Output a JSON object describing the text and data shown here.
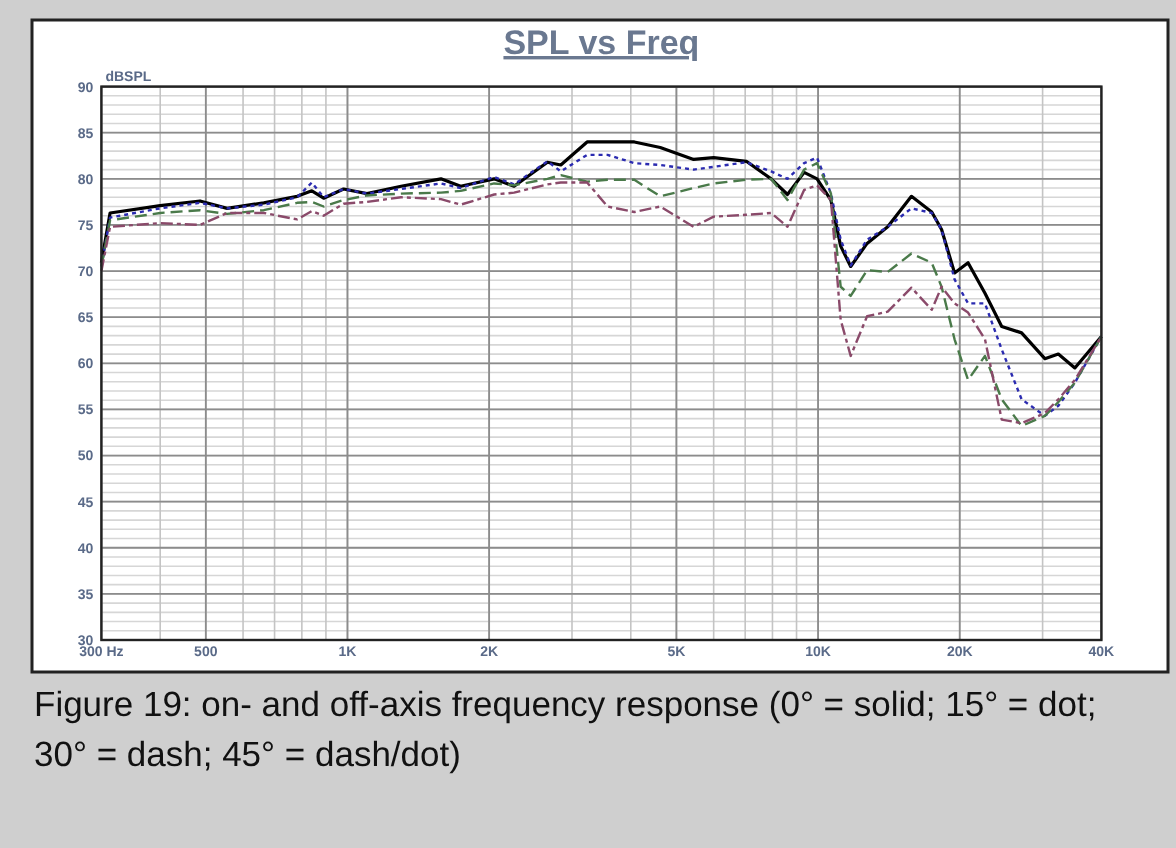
{
  "chart_data": {
    "type": "line",
    "title": "SPL vs Freq",
    "ylabel": "dBSPL",
    "log": "x",
    "x": [
      300,
      313,
      400,
      486,
      555,
      664,
      782,
      840,
      890,
      981,
      1100,
      1300,
      1580,
      1740,
      2050,
      2260,
      2660,
      2840,
      3230,
      3570,
      4070,
      4620,
      5440,
      6000,
      7040,
      7950,
      8610,
      9340,
      9950,
      10650,
      11170,
      11730,
      12710,
      14060,
      15790,
      17440,
      18300,
      19500,
      20830,
      22630,
      24560,
      27070,
      30330,
      32400,
      35130,
      40000
    ],
    "series": [
      {
        "color": "#000000",
        "line_style": "solid",
        "values": [
          70.9,
          76.3,
          77.1,
          77.6,
          76.8,
          77.4,
          78.1,
          78.7,
          77.9,
          78.9,
          78.4,
          79.2,
          80.0,
          79.2,
          80.0,
          79.2,
          81.8,
          81.5,
          84.0,
          84.0,
          84.0,
          83.4,
          82.1,
          82.3,
          81.9,
          80.0,
          78.3,
          80.7,
          80.0,
          77.7,
          72.7,
          70.5,
          73.0,
          74.8,
          78.1,
          76.4,
          74.5,
          69.8,
          70.9,
          67.6,
          64.0,
          63.3,
          60.5,
          61.0,
          59.5,
          62.9
        ]
      },
      {
        "color": "#2b2bb0",
        "line_style": "dotted",
        "values": [
          70.5,
          75.8,
          76.8,
          77.4,
          76.8,
          77.2,
          78.0,
          79.6,
          78.0,
          78.9,
          78.4,
          78.9,
          79.5,
          79.0,
          80.2,
          79.4,
          81.9,
          80.8,
          82.6,
          82.6,
          81.7,
          81.5,
          81.0,
          81.3,
          81.8,
          80.8,
          80.0,
          81.7,
          82.3,
          78.4,
          73.4,
          70.6,
          73.4,
          74.8,
          76.8,
          76.3,
          74.5,
          69.1,
          66.5,
          66.5,
          61.5,
          56.1,
          54.3,
          55.4,
          57.9,
          62.9
        ]
      },
      {
        "color": "#4a7a4a",
        "line_style": "dashed",
        "values": [
          70.5,
          75.5,
          76.3,
          76.6,
          76.2,
          76.6,
          77.4,
          77.5,
          77.0,
          77.7,
          78.2,
          78.4,
          78.5,
          78.7,
          79.5,
          79.3,
          80.0,
          80.4,
          79.7,
          79.9,
          79.9,
          78.1,
          79.0,
          79.5,
          79.9,
          80.0,
          77.7,
          81.0,
          81.7,
          78.4,
          68.3,
          67.3,
          70.1,
          69.9,
          71.9,
          70.9,
          68.3,
          62.6,
          58.2,
          60.8,
          56.1,
          53.2,
          54.3,
          55.8,
          57.9,
          62.9
        ]
      },
      {
        "color": "#8a4a6a",
        "line_style": "dashdot",
        "values": [
          70.0,
          74.8,
          75.2,
          75.0,
          76.3,
          76.3,
          75.6,
          76.5,
          76.0,
          77.3,
          77.5,
          78.0,
          77.8,
          77.2,
          78.3,
          78.5,
          79.4,
          79.6,
          79.6,
          77.0,
          76.4,
          77.0,
          74.8,
          75.9,
          76.1,
          76.3,
          74.8,
          78.8,
          79.3,
          77.7,
          64.7,
          60.8,
          65.1,
          65.6,
          68.2,
          65.8,
          68.3,
          66.5,
          65.5,
          62.6,
          53.9,
          53.5,
          54.6,
          56.1,
          58.2,
          62.9
        ]
      }
    ],
    "xlim": [
      300,
      40000
    ],
    "ylim": [
      30,
      90
    ],
    "xticks": [
      {
        "value": 300,
        "label": "300 Hz"
      },
      500,
      {
        "value": 1000,
        "label": "1K"
      },
      {
        "value": 2000,
        "label": "2K"
      },
      {
        "value": 5000,
        "label": "5K"
      },
      {
        "value": 10000,
        "label": "10K"
      },
      {
        "value": 20000,
        "label": "20K"
      },
      {
        "value": 40000,
        "label": "40K"
      }
    ],
    "yticks": [
      30,
      35,
      40,
      45,
      50,
      55,
      60,
      65,
      70,
      75,
      80,
      85,
      90
    ],
    "grid": true,
    "annotations": [
      "Figure 19: on- and off-axis frequency response (0° = solid; 15° = dot; 30° = dash; 45° = dash/dot)"
    ]
  }
}
